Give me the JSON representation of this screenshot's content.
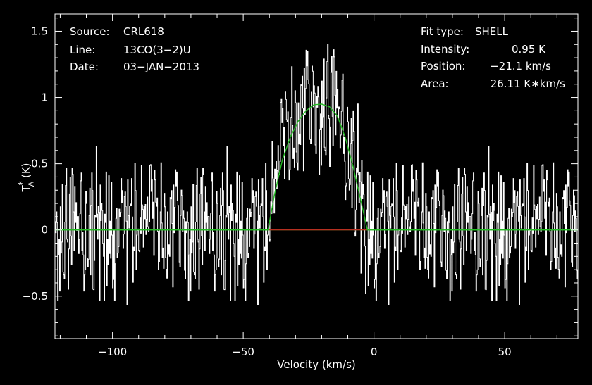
{
  "chart_data": {
    "type": "line",
    "title": "",
    "xlabel": "Velocity (km/s)",
    "ylabel": "T_A^* (K)",
    "xlim": [
      -122,
      78
    ],
    "ylim": [
      -0.82,
      1.63
    ],
    "x_ticks": [
      -100,
      -50,
      0,
      50
    ],
    "y_ticks": [
      -0.5,
      0,
      0.5,
      1,
      1.5
    ],
    "x_tick_labels": [
      "−100",
      "−50",
      "0",
      "50"
    ],
    "y_tick_labels": [
      "−0.5",
      "0",
      "0.5",
      "1",
      "1.5"
    ],
    "grid": false,
    "colors": {
      "background": "#000000",
      "spectrum": "#ffffff",
      "fit": "#22bb22",
      "line_window": "#cc2222",
      "frame": "#ffffff"
    },
    "info_left": [
      {
        "key": "Source:",
        "value": "CRL618"
      },
      {
        "key": "Line:",
        "value": "13CO(3−2)U"
      },
      {
        "key": "Date:",
        "value": "03−JAN−2013"
      }
    ],
    "info_right": [
      {
        "key": "Fit type:",
        "value": "SHELL"
      },
      {
        "key": "Intensity:",
        "value": "0.95 K"
      },
      {
        "key": "Position:",
        "value": "−21.1 km/s"
      },
      {
        "key": "Area:",
        "value": "26.11 K∗km/s"
      }
    ],
    "fit": {
      "x": [
        -122,
        -40.5,
        -38,
        -35,
        -32,
        -29,
        -26,
        -23,
        -20,
        -17,
        -14,
        -11,
        -8,
        -5,
        -2.5,
        78
      ],
      "y": [
        0,
        0,
        0.27,
        0.53,
        0.7,
        0.82,
        0.9,
        0.945,
        0.95,
        0.93,
        0.86,
        0.7,
        0.48,
        0.22,
        0,
        0
      ]
    },
    "line_window": {
      "x": [
        -40.5,
        -2.5
      ],
      "y": 0
    },
    "spectrum": {
      "name": "",
      "x_start": -122,
      "x_step": 0.25,
      "noise_rms": 0.17,
      "values": [
        0.13,
        -0.05,
        0.28,
        -0.21,
        0.07,
        0.33,
        -0.35,
        0.12,
        0.02,
        -0.18,
        0.41,
        -0.09,
        0.22,
        -0.28,
        0.05,
        0.31,
        -0.42,
        0.17,
        -0.03,
        0.26,
        -0.14,
        0.08,
        0.49,
        -0.31,
        0.11,
        -0.22,
        0.19,
        0.03,
        -0.47,
        0.24,
        0.06,
        -0.12,
        0.35,
        -0.27,
        0.15,
        -0.05,
        0.29,
        -0.38,
        0.09,
        0.18,
        -0.16,
        0.44,
        -0.08,
        0.21,
        -0.33,
        0.02,
        0.27,
        -0.19,
        0.13,
        -0.41,
        0.34,
        0.01,
        -0.25,
        0.16,
        0.38,
        -0.11,
        0.07,
        -0.29,
        0.23,
        0.04,
        -0.36,
        0.19,
        0.11,
        -0.14,
        0.42,
        -0.23,
        0.06,
        0.28,
        -0.39,
        0.15,
        -0.02,
        0.24,
        -0.17,
        0.33,
        -0.07,
        0.12,
        -0.44,
        0.21,
        0.09,
        -0.26,
        0.37,
        0.03,
        -0.15,
        0.25,
        -0.32,
        0.18,
        0.08,
        -0.21,
        0.46,
        -0.12,
        0.14,
        -0.35,
        0.27,
        0.05,
        -0.09,
        0.31,
        -0.24,
        0.17,
        -0.43,
        0.1,
        0.22,
        -0.06,
        0.39,
        -0.28,
        0.13,
        0.02,
        -0.19,
        0.29,
        -0.37,
        0.16,
        0.07,
        -0.13,
        0.35,
        -0.22,
        0.11,
        -0.31,
        0.24,
        0.04,
        -0.16,
        0.41,
        -0.08,
        0.19,
        -0.27,
        0.12,
        0.33,
        -0.4,
        0.06,
        0.21,
        -0.11,
        0.26,
        -0.34,
        0.15,
        0.09,
        -0.2,
        0.43,
        -0.05,
        0.18,
        -0.29,
        0.23,
        0.03,
        -0.38,
        0.14,
        0.28,
        -0.15,
        0.07,
        -0.25,
        0.36,
        0.01,
        -0.18,
        0.22,
        -0.32,
        0.17,
        0.1,
        -0.42,
        0.3,
        -0.07,
        0.13,
        -0.23,
        0.38,
        0.05,
        -0.14,
        0.25,
        -0.36,
        0.11,
        0.19,
        -0.09,
        0.32,
        -0.27,
        0.06,
        0.15,
        -0.45,
        0.21,
        0.08,
        -0.17,
        0.34,
        -0.21,
        0.12,
        0.27,
        -0.33,
        0.02,
        0.18,
        -0.12,
        0.4,
        -0.24,
        0.09,
        0.23,
        -0.38,
        0.14,
        -0.04,
        0.3,
        -0.19,
        0.07,
        0.36,
        -0.29,
        0.16,
        -0.08,
        0.22,
        -0.41,
        0.11,
        0.26
      ]
    }
  }
}
